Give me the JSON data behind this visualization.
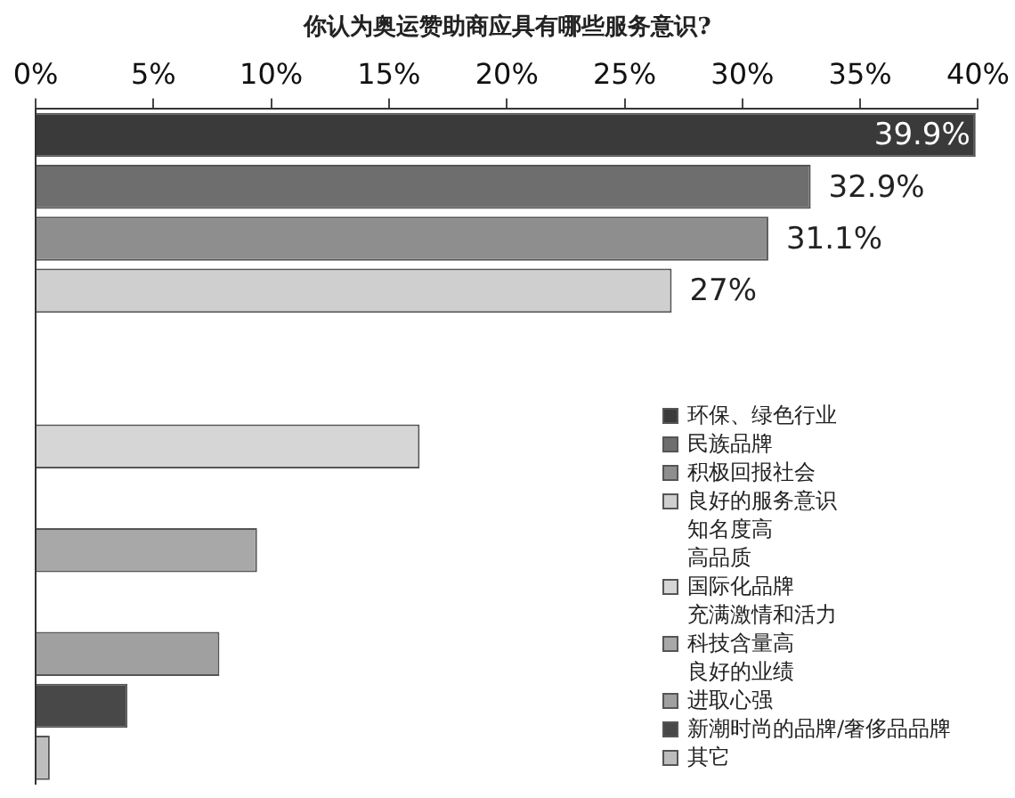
{
  "chart_data": {
    "type": "bar",
    "orientation": "horizontal",
    "title": "你认为奥运赞助商应具有哪些服务意识?",
    "categories": [
      null,
      null,
      null,
      null,
      null,
      null,
      null,
      null,
      null,
      null,
      null,
      null,
      null
    ],
    "series": [
      {
        "name": "环保、绿色行业",
        "color": "#3a3a3a",
        "values": [
          39.9,
          null,
          null,
          null,
          null,
          null,
          null,
          null,
          null,
          null,
          null,
          null,
          null
        ],
        "value_labels": [
          "39.9%",
          null,
          null,
          null,
          null,
          null,
          null,
          null,
          null,
          null,
          null,
          null,
          null
        ]
      },
      {
        "name": "民族品牌",
        "color": "#6e6e6e",
        "values": [
          null,
          32.9,
          null,
          null,
          null,
          null,
          null,
          null,
          null,
          null,
          null,
          null,
          null
        ],
        "value_labels": [
          null,
          "32.9%",
          null,
          null,
          null,
          null,
          null,
          null,
          null,
          null,
          null,
          null,
          null
        ]
      },
      {
        "name": "积极回报社会",
        "color": "#8e8e8e",
        "values": [
          null,
          null,
          31.1,
          null,
          null,
          null,
          null,
          null,
          null,
          null,
          null,
          null,
          null
        ],
        "value_labels": [
          null,
          null,
          "31.1%",
          null,
          null,
          null,
          null,
          null,
          null,
          null,
          null,
          null,
          null
        ]
      },
      {
        "name": "良好的服务意识",
        "color": "#cfcfcf",
        "values": [
          null,
          null,
          null,
          27,
          null,
          null,
          null,
          null,
          null,
          null,
          null,
          null,
          null
        ],
        "value_labels": [
          null,
          null,
          null,
          "27%",
          null,
          null,
          null,
          null,
          null,
          null,
          null,
          null,
          null
        ]
      },
      {
        "name": "知名度高",
        "values": [
          null,
          null,
          null,
          null,
          null,
          null,
          null,
          null,
          null,
          null,
          null,
          null,
          null
        ]
      },
      {
        "name": "高品质",
        "values": [
          null,
          null,
          null,
          null,
          null,
          null,
          null,
          null,
          null,
          null,
          null,
          null,
          null
        ]
      },
      {
        "name": "国际化品牌",
        "color": "#d6d6d6",
        "values": [
          null,
          null,
          null,
          null,
          null,
          null,
          16.3,
          null,
          null,
          null,
          null,
          null,
          null
        ]
      },
      {
        "name": "充满激情和活力",
        "values": [
          null,
          null,
          null,
          null,
          null,
          null,
          null,
          null,
          null,
          null,
          null,
          null,
          null
        ]
      },
      {
        "name": "科技含量高",
        "color": "#a8a8a8",
        "values": [
          null,
          null,
          null,
          null,
          null,
          null,
          null,
          null,
          9.4,
          null,
          null,
          null,
          null
        ]
      },
      {
        "name": "良好的业绩",
        "values": [
          null,
          null,
          null,
          null,
          null,
          null,
          null,
          null,
          null,
          null,
          null,
          null,
          null
        ]
      },
      {
        "name": "进取心强",
        "color": "#a0a0a0",
        "values": [
          null,
          null,
          null,
          null,
          null,
          null,
          null,
          null,
          null,
          null,
          7.8,
          null,
          null
        ]
      },
      {
        "name": "新潮时尚的品牌/奢侈品品牌",
        "color": "#484848",
        "values": [
          null,
          null,
          null,
          null,
          null,
          null,
          null,
          null,
          null,
          null,
          null,
          3.9,
          null
        ]
      },
      {
        "name": "其它",
        "color": "#bdbdbd",
        "values": [
          null,
          null,
          null,
          null,
          null,
          null,
          null,
          null,
          null,
          null,
          null,
          null,
          0.6
        ]
      }
    ],
    "xlim": [
      0,
      40
    ],
    "xticks": [
      {
        "value": 0,
        "label": "0%"
      },
      {
        "value": 5,
        "label": "5%"
      },
      {
        "value": 10,
        "label": "10%"
      },
      {
        "value": 15,
        "label": "15%"
      },
      {
        "value": 20,
        "label": "20%"
      },
      {
        "value": 25,
        "label": "25%"
      },
      {
        "value": 30,
        "label": "30%"
      },
      {
        "value": 35,
        "label": "35%"
      },
      {
        "value": 40,
        "label": "40%"
      }
    ],
    "tick_labels": "x",
    "legend": "bottom right"
  }
}
